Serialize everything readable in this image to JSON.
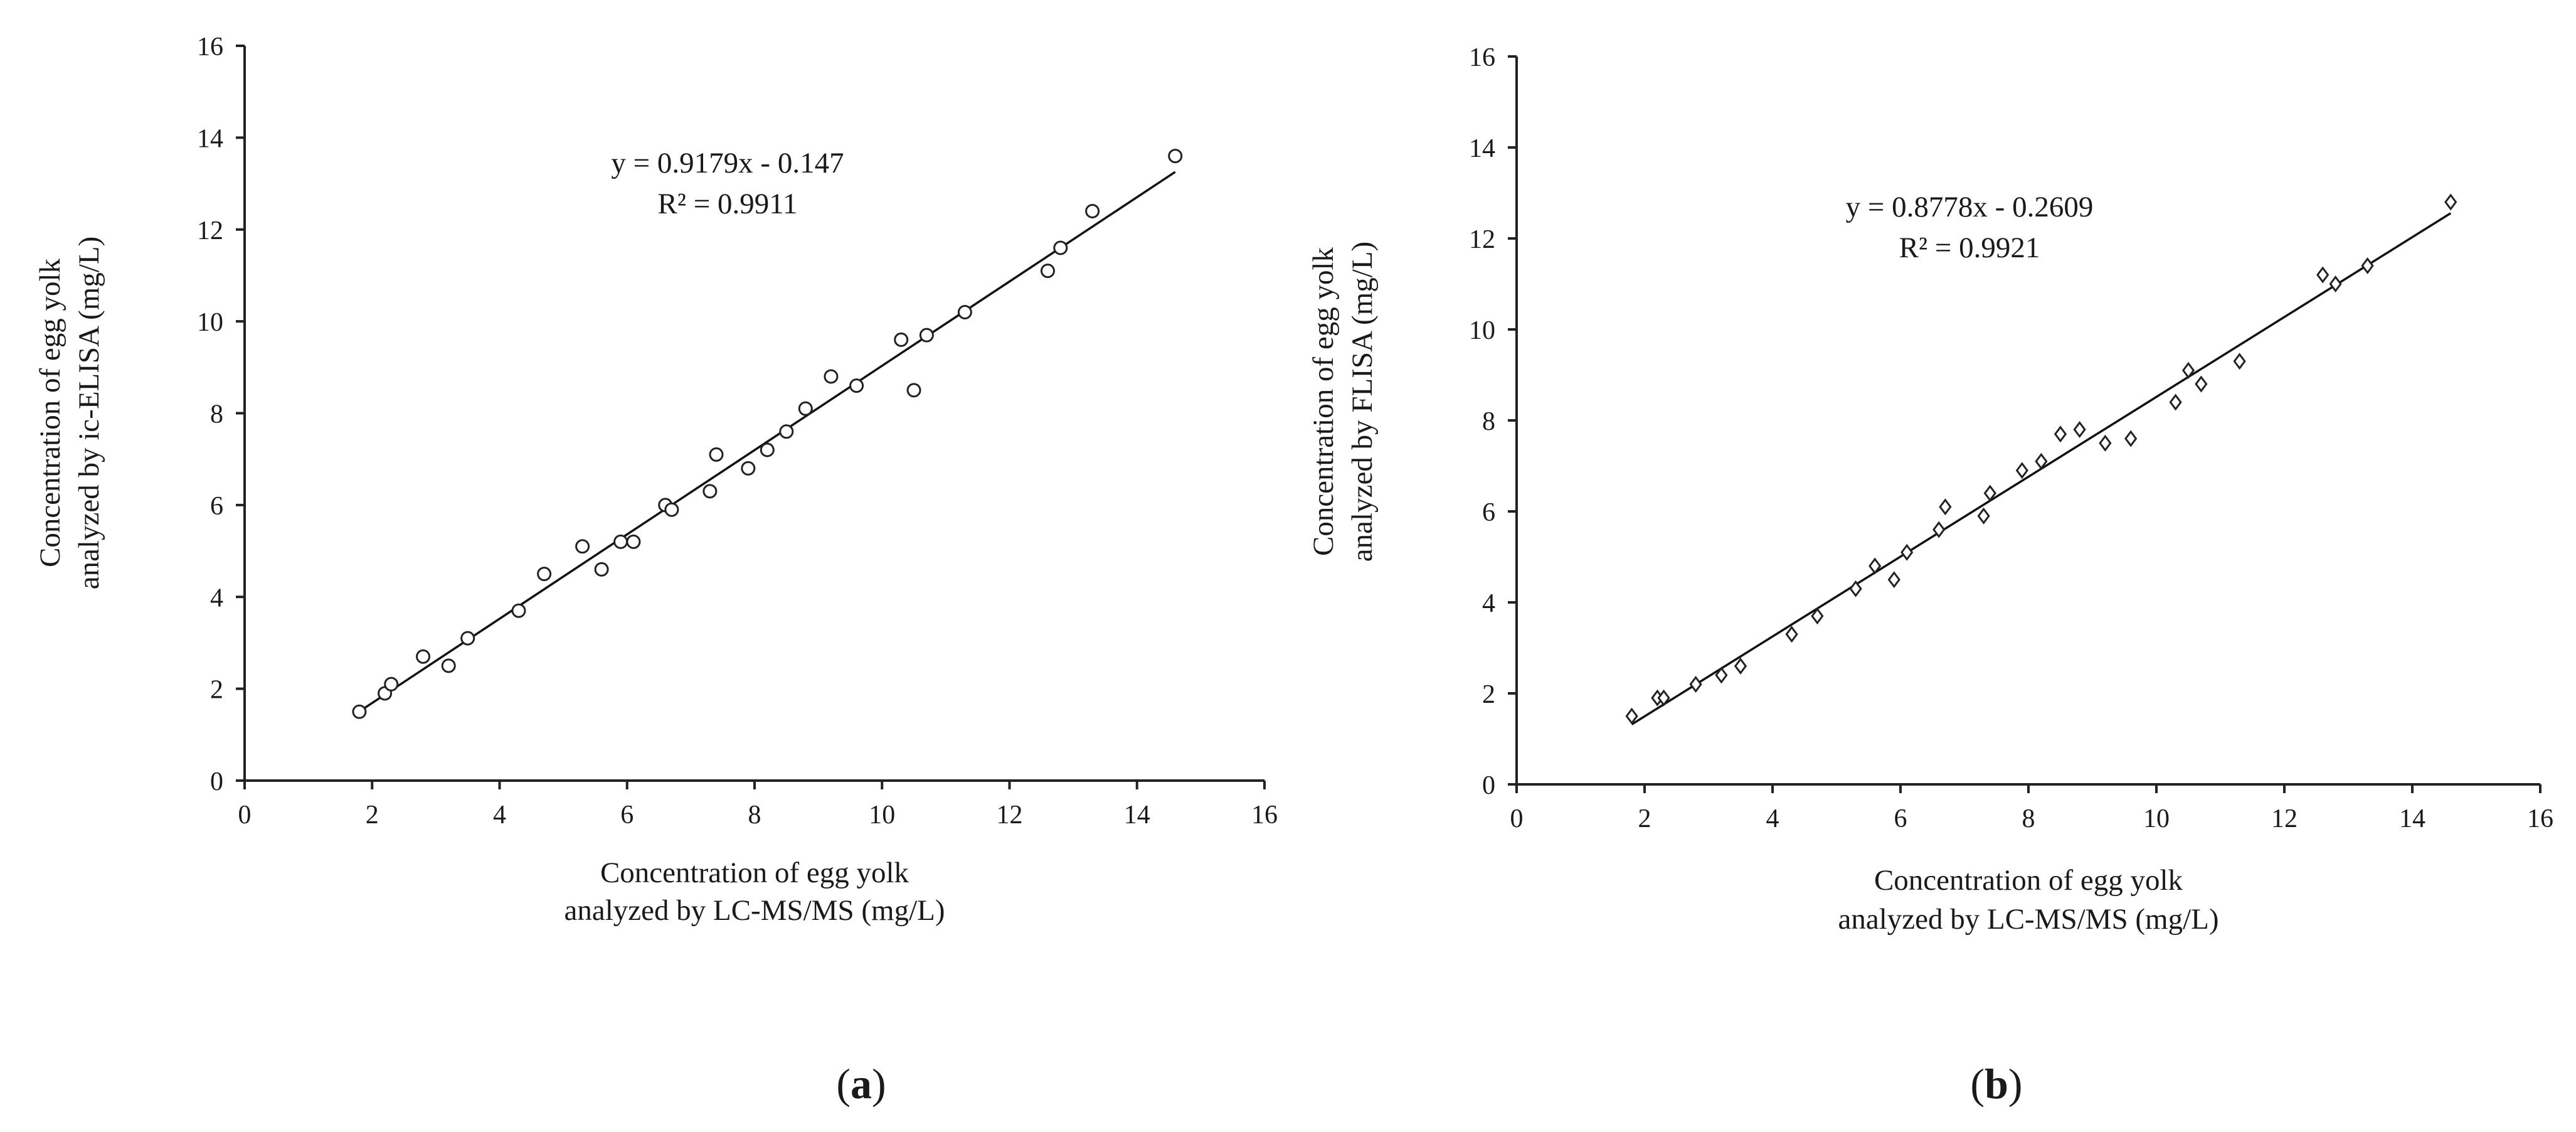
{
  "chart_data": [
    {
      "type": "scatter",
      "panel_label": "a",
      "marker": "circle",
      "xlabel": [
        "Concentration of egg yolk",
        "analyzed by LC-MS/MS  (mg/L)"
      ],
      "ylabel": [
        "Concentration of egg yolk",
        "analyzed by ic-ELISA (mg/L)"
      ],
      "xlim": [
        0,
        16
      ],
      "ylim": [
        0,
        16
      ],
      "x_ticks": [
        0,
        2,
        4,
        6,
        8,
        10,
        12,
        14,
        16
      ],
      "y_ticks": [
        0,
        2,
        4,
        6,
        8,
        10,
        12,
        14,
        16
      ],
      "grid": false,
      "trendline": {
        "slope": 0.9179,
        "intercept": -0.147,
        "x_range": [
          1.8,
          14.6
        ]
      },
      "annotations": [
        "y = 0.9179x - 0.147",
        "R² = 0.9911"
      ],
      "points": [
        [
          1.8,
          1.5
        ],
        [
          2.2,
          1.9
        ],
        [
          2.3,
          2.1
        ],
        [
          2.8,
          2.7
        ],
        [
          3.2,
          2.5
        ],
        [
          3.5,
          3.1
        ],
        [
          4.3,
          3.7
        ],
        [
          4.7,
          4.5
        ],
        [
          5.3,
          5.1
        ],
        [
          5.6,
          4.6
        ],
        [
          5.9,
          5.2
        ],
        [
          6.1,
          5.2
        ],
        [
          6.6,
          6.0
        ],
        [
          6.7,
          5.9
        ],
        [
          7.3,
          6.3
        ],
        [
          7.4,
          7.1
        ],
        [
          7.9,
          6.8
        ],
        [
          8.2,
          7.2
        ],
        [
          8.5,
          7.6
        ],
        [
          8.8,
          8.1
        ],
        [
          9.2,
          8.8
        ],
        [
          9.6,
          8.6
        ],
        [
          10.3,
          9.6
        ],
        [
          10.5,
          8.5
        ],
        [
          10.7,
          9.7
        ],
        [
          11.3,
          10.2
        ],
        [
          12.6,
          11.1
        ],
        [
          12.8,
          11.6
        ],
        [
          13.3,
          12.4
        ],
        [
          14.6,
          13.6
        ]
      ]
    },
    {
      "type": "scatter",
      "panel_label": "b",
      "marker": "diamond",
      "xlabel": [
        "Concentration of egg yolk",
        "analyzed by LC-MS/MS   (mg/L)"
      ],
      "ylabel": [
        "Concentration of egg yolk",
        "analyzed by FLISA (mg/L)"
      ],
      "xlim": [
        0,
        16
      ],
      "ylim": [
        0,
        16
      ],
      "x_ticks": [
        0,
        2,
        4,
        6,
        8,
        10,
        12,
        14,
        16
      ],
      "y_ticks": [
        0,
        2,
        4,
        6,
        8,
        10,
        12,
        14,
        16
      ],
      "grid": false,
      "trendline": {
        "slope": 0.8778,
        "intercept": -0.2609,
        "x_range": [
          1.8,
          14.6
        ]
      },
      "annotations": [
        "y = 0.8778x - 0.2609",
        "R² = 0.9921"
      ],
      "points": [
        [
          1.8,
          1.5
        ],
        [
          2.2,
          1.9
        ],
        [
          2.3,
          1.9
        ],
        [
          2.8,
          2.2
        ],
        [
          3.2,
          2.4
        ],
        [
          3.5,
          2.6
        ],
        [
          4.3,
          3.3
        ],
        [
          4.7,
          3.7
        ],
        [
          5.3,
          4.3
        ],
        [
          5.6,
          4.8
        ],
        [
          5.9,
          4.5
        ],
        [
          6.1,
          5.1
        ],
        [
          6.6,
          5.6
        ],
        [
          6.7,
          6.1
        ],
        [
          7.3,
          5.9
        ],
        [
          7.4,
          6.4
        ],
        [
          7.9,
          6.9
        ],
        [
          8.2,
          7.1
        ],
        [
          8.5,
          7.7
        ],
        [
          8.8,
          7.8
        ],
        [
          9.2,
          7.5
        ],
        [
          9.6,
          7.6
        ],
        [
          10.3,
          8.4
        ],
        [
          10.5,
          9.1
        ],
        [
          10.7,
          8.8
        ],
        [
          11.3,
          9.3
        ],
        [
          12.6,
          11.2
        ],
        [
          12.8,
          11.0
        ],
        [
          13.3,
          11.4
        ],
        [
          14.6,
          12.8
        ]
      ]
    }
  ]
}
